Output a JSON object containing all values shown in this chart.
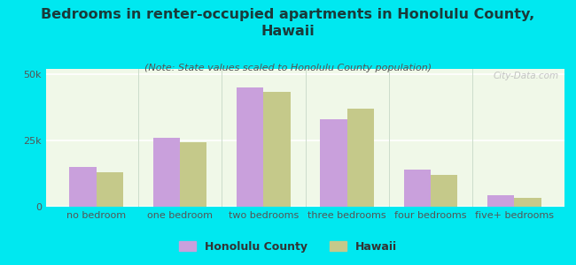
{
  "title": "Bedrooms in renter-occupied apartments in Honolulu County,\nHawaii",
  "subtitle": "(Note: State values scaled to Honolulu County population)",
  "categories": [
    "no bedroom",
    "one bedroom",
    "two bedrooms",
    "three bedrooms",
    "four bedrooms",
    "five+ bedrooms"
  ],
  "honolulu_values": [
    15000,
    26000,
    45000,
    33000,
    14000,
    4500
  ],
  "hawaii_values": [
    13000,
    24500,
    43500,
    37000,
    12000,
    3500
  ],
  "honolulu_color": "#c9a0dc",
  "hawaii_color": "#c5c98a",
  "background_outer": "#00e8f0",
  "background_inner_top": "#f0f8e8",
  "background_inner_bottom": "#d8edc0",
  "ylim": [
    0,
    52000
  ],
  "yticks": [
    0,
    25000,
    50000
  ],
  "ytick_labels": [
    "0",
    "25k",
    "50k"
  ],
  "bar_width": 0.32,
  "watermark": "City-Data.com",
  "legend_labels": [
    "Honolulu County",
    "Hawaii"
  ],
  "title_fontsize": 11.5,
  "subtitle_fontsize": 8,
  "axis_label_fontsize": 8,
  "title_color": "#1a3a3a",
  "subtitle_color": "#555555",
  "tick_color": "#555555"
}
